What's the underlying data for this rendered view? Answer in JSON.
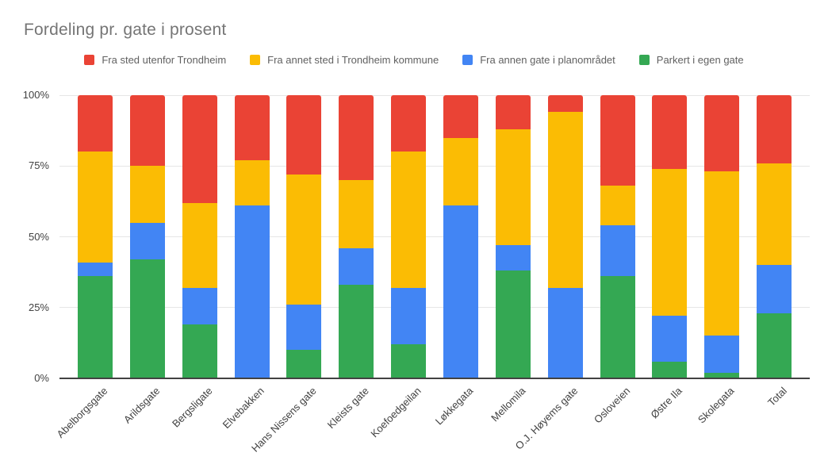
{
  "title": "Fordeling pr. gate i prosent",
  "colors": {
    "red": "#EA4335",
    "yellow": "#FBBC04",
    "blue": "#4285F4",
    "green": "#34A853",
    "gridline": "#e6e6e6",
    "axis_line": "#424242",
    "title_text": "#757575",
    "axis_text": "#424242",
    "legend_text": "#616161",
    "background": "#ffffff"
  },
  "legend": [
    {
      "label": "Fra sted utenfor Trondheim",
      "color": "#EA4335"
    },
    {
      "label": "Fra annet sted i Trondheim kommune",
      "color": "#FBBC04"
    },
    {
      "label": "Fra annen gate i planområdet",
      "color": "#4285F4"
    },
    {
      "label": "Parkert i egen gate",
      "color": "#34A853"
    }
  ],
  "chart_data": {
    "type": "bar",
    "stacked": true,
    "percent": true,
    "title": "Fordeling pr. gate i prosent",
    "xlabel": "",
    "ylabel": "",
    "ylim": [
      0,
      100
    ],
    "grid": true,
    "legend_position": "top",
    "y_ticks": [
      "0%",
      "25%",
      "50%",
      "75%",
      "100%"
    ],
    "y_tick_values": [
      0,
      25,
      50,
      75,
      100
    ],
    "categories": [
      "Abelborgsgate",
      "Arildsgate",
      "Bergsligate",
      "Elvebakken",
      "Hans Nissens gate",
      "Kleists gate",
      "Koefoedgeilan",
      "Løkkegata",
      "Mellomila",
      "O.J. Høyems gate",
      "Osloveien",
      "Østre Ila",
      "Skolegata",
      "Total"
    ],
    "series": [
      {
        "name": "Parkert i egen gate",
        "color": "#34A853",
        "values": [
          36,
          42,
          19,
          0,
          10,
          33,
          12,
          0,
          38,
          0,
          36,
          6,
          2,
          23
        ]
      },
      {
        "name": "Fra annen gate i planområdet",
        "color": "#4285F4",
        "values": [
          5,
          13,
          13,
          61,
          16,
          13,
          20,
          61,
          9,
          32,
          18,
          16,
          13,
          17
        ]
      },
      {
        "name": "Fra annet sted i Trondheim kommune",
        "color": "#FBBC04",
        "values": [
          39,
          20,
          30,
          16,
          46,
          24,
          48,
          24,
          41,
          62,
          14,
          52,
          58,
          36
        ]
      },
      {
        "name": "Fra sted utenfor Trondheim",
        "color": "#EA4335",
        "values": [
          20,
          25,
          38,
          23,
          28,
          30,
          20,
          15,
          12,
          6,
          32,
          26,
          27,
          24
        ]
      }
    ]
  }
}
